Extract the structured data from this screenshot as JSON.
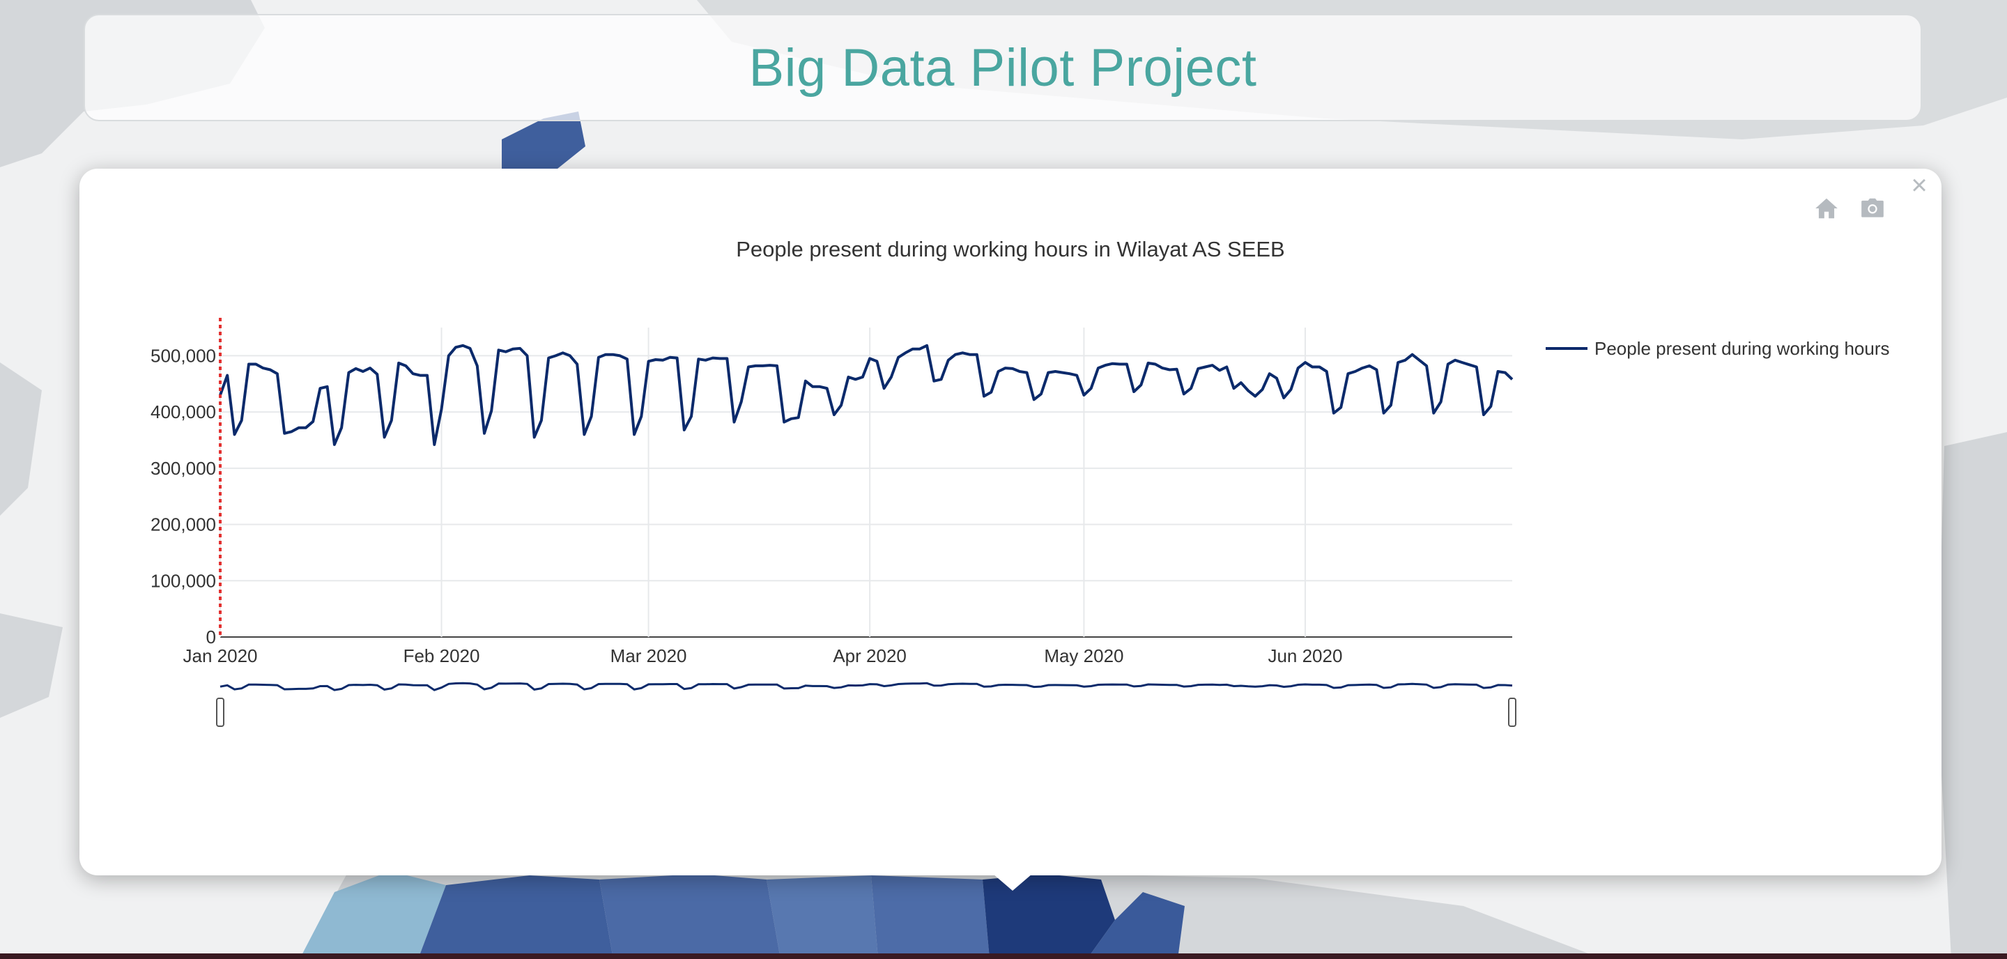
{
  "page": {
    "title": "Big Data Pilot Project"
  },
  "popup": {
    "close_symbol": "×"
  },
  "modebar": [
    {
      "name": "home-icon"
    },
    {
      "name": "camera-icon"
    }
  ],
  "colors": {
    "title": "#4aa6a0",
    "series": "#0b2a6b",
    "marker_line": "#e3302f",
    "map_dark": "#2b4a8b",
    "map_light": "#8fb9d2"
  },
  "chart_data": {
    "type": "line",
    "title": "People present during working hours in Wilayat AS SEEB",
    "xlabel": "",
    "ylabel": "",
    "x_start": "2020-01-01",
    "x_end": "2020-06-30",
    "xticks": [
      {
        "date": "2020-01-01",
        "label": "Jan 2020"
      },
      {
        "date": "2020-02-01",
        "label": "Feb 2020"
      },
      {
        "date": "2020-03-01",
        "label": "Mar 2020"
      },
      {
        "date": "2020-04-01",
        "label": "Apr 2020"
      },
      {
        "date": "2020-05-01",
        "label": "May 2020"
      },
      {
        "date": "2020-06-01",
        "label": "Jun 2020"
      }
    ],
    "ylim": [
      0,
      550000
    ],
    "yticks": [
      {
        "value": 0,
        "label": "0"
      },
      {
        "value": 100000,
        "label": "100,000"
      },
      {
        "value": 200000,
        "label": "200,000"
      },
      {
        "value": 300000,
        "label": "300,000"
      },
      {
        "value": 400000,
        "label": "400,000"
      },
      {
        "value": 500000,
        "label": "500,000"
      }
    ],
    "marker_date": "2020-01-01",
    "legend": "top-right",
    "grid": true,
    "rangeslider": true,
    "series": [
      {
        "name": "People present during working hours",
        "values": [
          430000,
          465000,
          360000,
          385000,
          485000,
          485000,
          478000,
          475000,
          468000,
          362000,
          365000,
          372000,
          372000,
          383000,
          442000,
          445000,
          342000,
          372000,
          470000,
          477000,
          472000,
          478000,
          467000,
          355000,
          385000,
          487000,
          482000,
          468000,
          465000,
          465000,
          342000,
          405000,
          500000,
          515000,
          518000,
          513000,
          482000,
          362000,
          402000,
          510000,
          507000,
          512000,
          513000,
          500000,
          355000,
          385000,
          496000,
          500000,
          505000,
          500000,
          485000,
          360000,
          392000,
          497000,
          502000,
          502000,
          500000,
          494000,
          360000,
          392000,
          490000,
          493000,
          492000,
          497000,
          496000,
          368000,
          392000,
          494000,
          492000,
          496000,
          495000,
          495000,
          382000,
          418000,
          480000,
          482000,
          482000,
          483000,
          482000,
          382000,
          388000,
          390000,
          455000,
          445000,
          445000,
          442000,
          395000,
          412000,
          462000,
          458000,
          462000,
          495000,
          490000,
          442000,
          462000,
          497000,
          505000,
          512000,
          512000,
          518000,
          455000,
          458000,
          492000,
          502000,
          505000,
          502000,
          502000,
          428000,
          435000,
          472000,
          478000,
          477000,
          472000,
          470000,
          422000,
          432000,
          470000,
          472000,
          470000,
          468000,
          465000,
          430000,
          442000,
          478000,
          483000,
          486000,
          485000,
          485000,
          436000,
          448000,
          487000,
          485000,
          478000,
          475000,
          476000,
          432000,
          442000,
          477000,
          480000,
          483000,
          474000,
          480000,
          442000,
          452000,
          438000,
          428000,
          440000,
          468000,
          460000,
          425000,
          440000,
          478000,
          488000,
          480000,
          480000,
          472000,
          398000,
          408000,
          468000,
          472000,
          478000,
          482000,
          475000,
          398000,
          412000,
          488000,
          492000,
          502000,
          492000,
          482000,
          398000,
          418000,
          485000,
          492000,
          488000,
          484000,
          480000,
          395000,
          410000,
          472000,
          470000,
          458000
        ]
      }
    ]
  }
}
